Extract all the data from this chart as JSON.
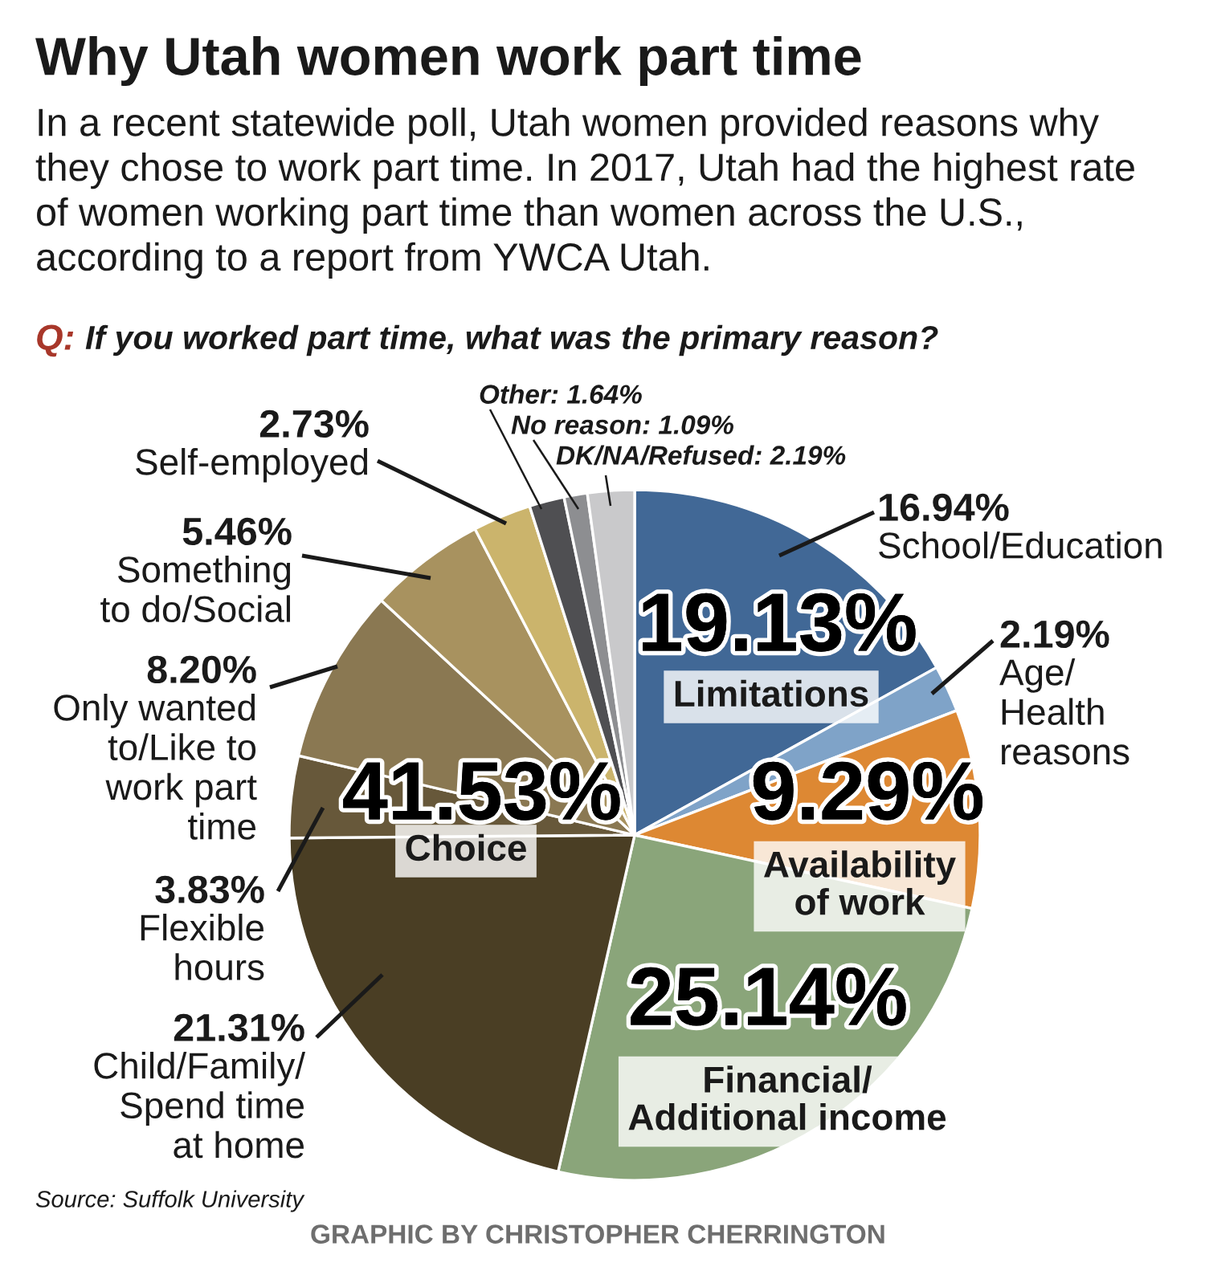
{
  "chart_data": {
    "type": "pie",
    "title": "Why Utah women work part time",
    "subtitle": "In a recent statewide poll, Utah women provided reasons why\nthey chose to work part time. In 2017, Utah had the highest rate\nof women working part time than women across the U.S.,\naccording to a report from YWCA Utah.",
    "categories": [
      "School/Education",
      "Age/\nHealth\nreasons",
      "Availability\nof work",
      "Financial/\nAdditional income",
      "Child/Family/\nSpend time\nat home",
      "Flexible\nhours",
      "Only wanted\nto/Like to\nwork part\ntime",
      "Something\nto do/Social",
      "Self-employed",
      "Other",
      "No reason",
      "DK/NA/Refused"
    ],
    "values": [
      16.94,
      2.19,
      9.29,
      25.14,
      21.31,
      3.83,
      8.2,
      5.46,
      2.73,
      1.64,
      1.09,
      2.19
    ],
    "value_labels": [
      "16.94%",
      "2.19%",
      "9.29%",
      "25.14%",
      "21.31%",
      "3.83%",
      "8.20%",
      "5.46%",
      "2.73%",
      "1.64%",
      "1.09%",
      "2.19%"
    ],
    "colors": [
      "#416896",
      "#7fa3c8",
      "#dd8833",
      "#8aa57a",
      "#4a3e24",
      "#67583a",
      "#8a7852",
      "#a8925f",
      "#cbb46c",
      "#4f4f52",
      "#8d8e91",
      "#c9c9cb"
    ],
    "annotations": [
      "Q:",
      "If you worked part time, what was the primary reason?",
      "19.13%",
      "Limitations",
      "41.53%",
      "Choice",
      "Source: Suffolk University",
      "GRAPHIC BY CHRISTOPHER CHERRINGTON"
    ]
  }
}
